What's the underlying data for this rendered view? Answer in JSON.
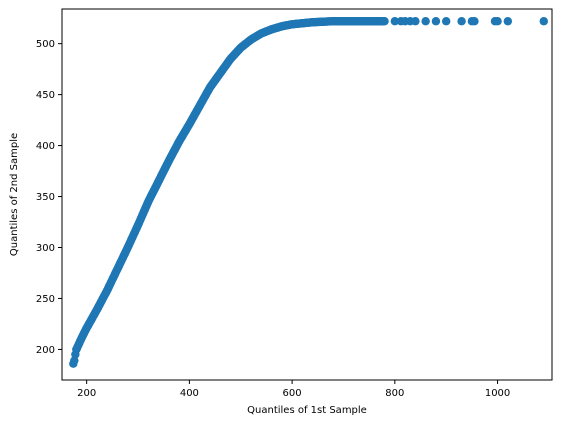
{
  "chart_data": {
    "type": "scatter",
    "title": "",
    "xlabel": "Quantiles of 1st Sample",
    "ylabel": "Quantiles of 2nd Sample",
    "xlim": [
      152,
      1106
    ],
    "ylim": [
      170,
      534
    ],
    "xticks": [
      200,
      400,
      600,
      800,
      1000
    ],
    "yticks": [
      200,
      250,
      300,
      350,
      400,
      450,
      500
    ],
    "grid": false,
    "marker_color": "#1f77b4",
    "curve_knots": {
      "x": [
        180,
        190,
        200,
        220,
        240,
        260,
        280,
        300,
        320,
        340,
        360,
        380,
        400,
        420,
        440,
        460,
        480,
        500,
        520,
        540,
        560,
        580,
        600,
        620,
        640,
        660,
        680,
        700,
        720,
        740,
        760,
        780
      ],
      "y": [
        200,
        211,
        221,
        239,
        258,
        279,
        300,
        322,
        345,
        365,
        385,
        404,
        421,
        439,
        457,
        471,
        485,
        496,
        504,
        510,
        514,
        517,
        519,
        520,
        521,
        521.5,
        522,
        522,
        522,
        522,
        522,
        522
      ]
    },
    "low_tail_points": {
      "x": [
        174,
        176,
        178,
        180
      ],
      "y": [
        186,
        189,
        195,
        200
      ]
    },
    "tail_points": {
      "x": [
        800,
        812,
        820,
        830,
        840,
        860,
        880,
        900,
        930,
        950,
        955,
        995,
        1000,
        1020,
        1090
      ],
      "y": [
        522,
        522,
        522,
        522,
        522,
        522,
        522,
        522,
        522,
        522,
        522,
        522,
        522,
        522,
        522
      ]
    }
  }
}
